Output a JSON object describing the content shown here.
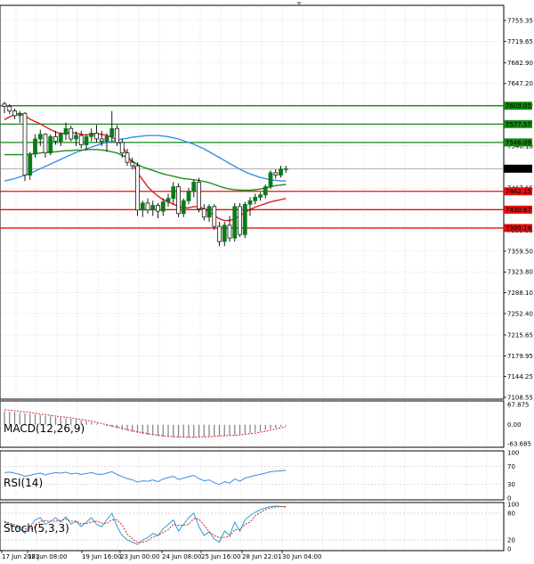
{
  "colors": {
    "bull_candle": "#0a7a1a",
    "bear_candle": "#1a1a1a",
    "ma_fast": "#d81e1e",
    "ma_mid": "#1f8c1f",
    "ma_slow": "#3a8ee6",
    "support": "#e01010",
    "resistance": "#118811",
    "current": "#808080",
    "grid": "#c8c8c8",
    "rsi_line": "#3a8ee6",
    "stoch_main": "#2aa0d8",
    "stoch_signal": "#d81e1e",
    "macd_hist": "#808080",
    "macd_signal": "#d81e1e"
  },
  "main": {
    "price_ticks": [
      "7755.35",
      "7719.65",
      "7682.90",
      "7647.20",
      "7611.45",
      "7540.10",
      "7467.65",
      "7395.35",
      "7359.50",
      "7323.80",
      "7288.10",
      "7252.40",
      "7215.65",
      "7179.95",
      "7144.25",
      "7108.55"
    ],
    "current_price": "7501.00",
    "levels": {
      "resistance": [
        "7609.05",
        "7577.57",
        "7546.09"
      ],
      "support": [
        "7462.15",
        "7430.67",
        "7399.19"
      ]
    }
  },
  "x_axis": {
    "labels": [
      "17 Jun 2021",
      "18 Jun 08:00",
      "19 Jun 16:00",
      "23 Jun 00:00",
      "24 Jun 08:00",
      "25 Jun 16:00",
      "28 Jun 22:01",
      "30 Jun 04:00"
    ]
  },
  "macd": {
    "label": "MACD(12,26,9)",
    "ticks": [
      "67.875",
      "0.00",
      "-63.685"
    ]
  },
  "rsi": {
    "label": "RSI(14)",
    "ticks": [
      "100",
      "70",
      "30",
      "0"
    ]
  },
  "stoch": {
    "label": "Stoch(5,3,3)",
    "ticks": [
      "100",
      "80",
      "20",
      "0"
    ]
  },
  "chart_data": {
    "type": "candlestick",
    "candles_ohlc": [
      [
        7612,
        7616,
        7596,
        7608
      ],
      [
        7608,
        7612,
        7595,
        7600
      ],
      [
        7600,
        7604,
        7586,
        7592
      ],
      [
        7592,
        7600,
        7580,
        7596
      ],
      [
        7596,
        7598,
        7480,
        7490
      ],
      [
        7490,
        7530,
        7482,
        7526
      ],
      [
        7526,
        7560,
        7520,
        7552
      ],
      [
        7552,
        7568,
        7540,
        7560
      ],
      [
        7560,
        7562,
        7520,
        7528
      ],
      [
        7528,
        7560,
        7524,
        7556
      ],
      [
        7556,
        7566,
        7542,
        7548
      ],
      [
        7548,
        7564,
        7540,
        7560
      ],
      [
        7560,
        7580,
        7550,
        7570
      ],
      [
        7570,
        7575,
        7548,
        7552
      ],
      [
        7552,
        7565,
        7540,
        7558
      ],
      [
        7558,
        7566,
        7536,
        7542
      ],
      [
        7542,
        7560,
        7532,
        7556
      ],
      [
        7556,
        7570,
        7548,
        7562
      ],
      [
        7562,
        7576,
        7546,
        7552
      ],
      [
        7552,
        7566,
        7540,
        7548
      ],
      [
        7548,
        7562,
        7530,
        7556
      ],
      [
        7556,
        7600,
        7548,
        7570
      ],
      [
        7570,
        7576,
        7540,
        7546
      ],
      [
        7546,
        7552,
        7520,
        7528
      ],
      [
        7528,
        7535,
        7506,
        7512
      ],
      [
        7512,
        7520,
        7500,
        7506
      ],
      [
        7506,
        7512,
        7420,
        7430
      ],
      [
        7430,
        7446,
        7418,
        7442
      ],
      [
        7442,
        7450,
        7424,
        7430
      ],
      [
        7430,
        7446,
        7420,
        7438
      ],
      [
        7438,
        7442,
        7416,
        7428
      ],
      [
        7428,
        7450,
        7420,
        7444
      ],
      [
        7444,
        7458,
        7436,
        7450
      ],
      [
        7450,
        7478,
        7440,
        7470
      ],
      [
        7470,
        7476,
        7418,
        7424
      ],
      [
        7424,
        7450,
        7418,
        7446
      ],
      [
        7446,
        7468,
        7440,
        7462
      ],
      [
        7462,
        7482,
        7452,
        7478
      ],
      [
        7478,
        7485,
        7426,
        7432
      ],
      [
        7432,
        7440,
        7412,
        7418
      ],
      [
        7418,
        7440,
        7410,
        7436
      ],
      [
        7436,
        7440,
        7396,
        7402
      ],
      [
        7402,
        7410,
        7368,
        7376
      ],
      [
        7376,
        7410,
        7368,
        7404
      ],
      [
        7404,
        7420,
        7376,
        7382
      ],
      [
        7382,
        7442,
        7376,
        7436
      ],
      [
        7436,
        7442,
        7384,
        7388
      ],
      [
        7388,
        7444,
        7382,
        7440
      ],
      [
        7440,
        7452,
        7420,
        7446
      ],
      [
        7446,
        7458,
        7440,
        7452
      ],
      [
        7452,
        7460,
        7446,
        7456
      ],
      [
        7456,
        7474,
        7450,
        7470
      ],
      [
        7470,
        7498,
        7466,
        7494
      ],
      [
        7494,
        7500,
        7484,
        7490
      ],
      [
        7490,
        7506,
        7486,
        7500
      ],
      [
        7500,
        7506,
        7494,
        7501
      ]
    ],
    "ma_fast": [
      7585,
      7590,
      7594,
      7596,
      7592,
      7586,
      7582,
      7578,
      7573,
      7568,
      7564,
      7561,
      7562,
      7563,
      7562,
      7560,
      7559,
      7560,
      7561,
      7560,
      7558,
      7555,
      7550,
      7540,
      7525,
      7510,
      7494,
      7482,
      7470,
      7461,
      7454,
      7448,
      7444,
      7440,
      7436,
      7434,
      7434,
      7436,
      7436,
      7432,
      7427,
      7421,
      7415,
      7412,
      7412,
      7415,
      7420,
      7426,
      7431,
      7435,
      7438,
      7441,
      7444,
      7446,
      7448,
      7450
    ],
    "ma_mid": [
      7525,
      7525,
      7525,
      7525,
      7525,
      7526,
      7527,
      7528,
      7529,
      7530,
      7530,
      7531,
      7532,
      7532,
      7533,
      7533,
      7534,
      7534,
      7534,
      7533,
      7532,
      7530,
      7528,
      7524,
      7520,
      7514,
      7508,
      7504,
      7501,
      7498,
      7495,
      7492,
      7490,
      7488,
      7486,
      7484,
      7483,
      7482,
      7481,
      7479,
      7477,
      7474,
      7471,
      7468,
      7466,
      7465,
      7464,
      7464,
      7464,
      7465,
      7466,
      7468,
      7470,
      7472,
      7473,
      7474
    ],
    "ma_slow": [
      7480,
      7482,
      7484,
      7487,
      7490,
      7493,
      7497,
      7501,
      7505,
      7509,
      7513,
      7517,
      7521,
      7525,
      7529,
      7532,
      7535,
      7538,
      7541,
      7544,
      7546,
      7548,
      7550,
      7552,
      7553,
      7555,
      7556,
      7557,
      7558,
      7558,
      7558,
      7557,
      7556,
      7554,
      7552,
      7549,
      7546,
      7543,
      7539,
      7535,
      7530,
      7525,
      7520,
      7515,
      7510,
      7505,
      7500,
      7496,
      7492,
      7489,
      7486,
      7484,
      7482,
      7481,
      7480,
      7480
    ],
    "macd_hist": [
      45,
      44,
      42,
      40,
      38,
      37,
      35,
      33,
      30,
      28,
      26,
      24,
      22,
      20,
      18,
      15,
      12,
      8,
      4,
      0,
      -4,
      -8,
      -12,
      -16,
      -20,
      -24,
      -28,
      -31,
      -34,
      -36,
      -38,
      -40,
      -41,
      -42,
      -43,
      -43,
      -43,
      -42,
      -41,
      -40,
      -39,
      -38,
      -37,
      -36,
      -35,
      -34,
      -32,
      -30,
      -28,
      -25,
      -22,
      -18,
      -14,
      -10,
      -6,
      -3
    ],
    "macd_signal": [
      50,
      49,
      47,
      45,
      43,
      41,
      39,
      36,
      34,
      31,
      29,
      27,
      25,
      23,
      20,
      18,
      15,
      12,
      8,
      4,
      0,
      -4,
      -8,
      -12,
      -16,
      -20,
      -24,
      -27,
      -30,
      -33,
      -35,
      -37,
      -39,
      -40,
      -41,
      -41,
      -42,
      -42,
      -41,
      -41,
      -40,
      -39,
      -38,
      -37,
      -36,
      -35,
      -34,
      -32,
      -30,
      -28,
      -25,
      -22,
      -18,
      -14,
      -10,
      -7
    ],
    "rsi": [
      56,
      57,
      55,
      52,
      48,
      50,
      53,
      55,
      51,
      54,
      56,
      55,
      57,
      53,
      55,
      52,
      54,
      56,
      53,
      52,
      55,
      58,
      52,
      47,
      43,
      40,
      35,
      38,
      37,
      40,
      36,
      42,
      45,
      48,
      41,
      44,
      47,
      50,
      43,
      38,
      40,
      34,
      30,
      36,
      33,
      42,
      37,
      44,
      47,
      50,
      52,
      55,
      58,
      59,
      60,
      61
    ],
    "stoch_main": [
      60,
      55,
      50,
      45,
      35,
      50,
      65,
      70,
      55,
      62,
      70,
      60,
      72,
      55,
      62,
      50,
      60,
      70,
      55,
      50,
      65,
      80,
      50,
      30,
      20,
      15,
      10,
      20,
      25,
      35,
      30,
      45,
      55,
      65,
      40,
      55,
      70,
      80,
      50,
      30,
      38,
      22,
      15,
      40,
      30,
      60,
      40,
      65,
      75,
      82,
      88,
      92,
      95,
      96,
      95,
      94
    ],
    "stoch_signal": [
      62,
      58,
      54,
      50,
      45,
      44,
      50,
      62,
      63,
      62,
      62,
      64,
      67,
      62,
      62,
      56,
      57,
      60,
      62,
      58,
      57,
      65,
      65,
      53,
      33,
      22,
      15,
      15,
      18,
      27,
      30,
      37,
      43,
      55,
      53,
      53,
      55,
      68,
      67,
      53,
      39,
      30,
      25,
      26,
      28,
      43,
      43,
      55,
      60,
      74,
      82,
      88,
      92,
      94,
      95,
      95
    ]
  }
}
